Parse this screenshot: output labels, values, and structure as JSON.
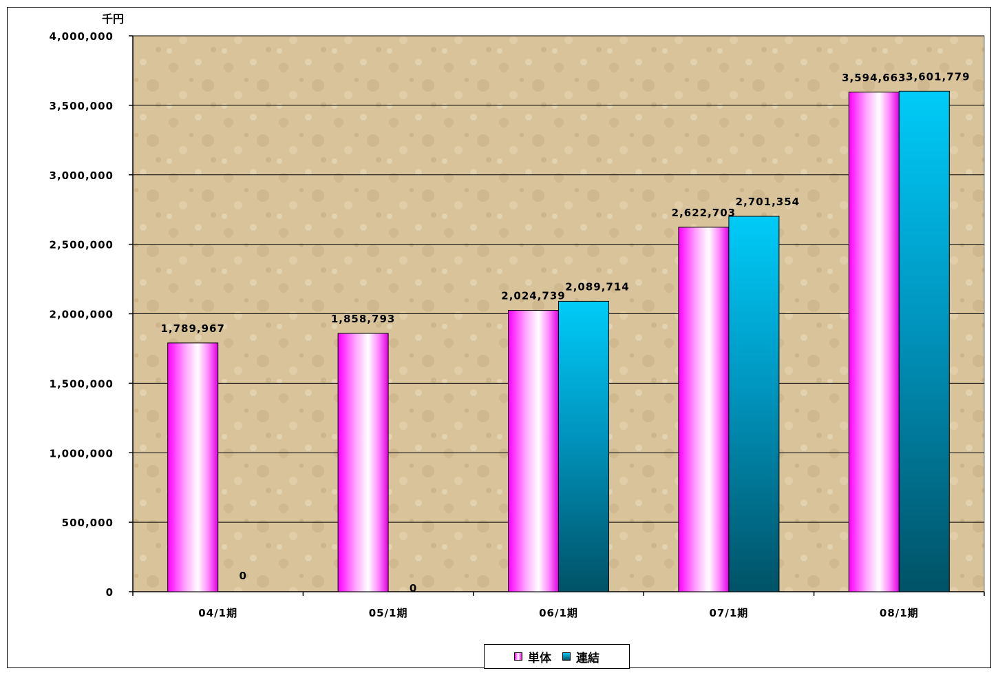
{
  "colors": {
    "tan_background": "#d8c39b",
    "single_series": "#ff33ff",
    "consolidated_series": "#00c8f5"
  },
  "chart_data": {
    "type": "bar",
    "unit_label": "千円",
    "categories": [
      "04/1期",
      "05/1期",
      "06/1期",
      "07/1期",
      "08/1期"
    ],
    "ylim": [
      0,
      4000000
    ],
    "y_ticks": [
      0,
      500000,
      1000000,
      1500000,
      2000000,
      2500000,
      3000000,
      3500000,
      4000000
    ],
    "y_tick_labels": [
      "0",
      "500,000",
      "1,000,000",
      "1,500,000",
      "2,000,000",
      "2,500,000",
      "3,000,000",
      "3,500,000",
      "4,000,000"
    ],
    "grid": true,
    "legend_position": "bottom",
    "series": [
      {
        "name": "単体",
        "values": [
          1789967,
          1858793,
          2024739,
          2622703,
          3594663
        ],
        "labels": [
          "1,789,967",
          "1,858,793",
          "2,024,739",
          "2,622,703",
          "3,594,663"
        ]
      },
      {
        "name": "連結",
        "values": [
          0,
          0,
          2089714,
          2701354,
          3601779
        ],
        "labels": [
          "0",
          "0",
          "2,089,714",
          "2,701,354",
          "3,601,779"
        ]
      }
    ]
  }
}
